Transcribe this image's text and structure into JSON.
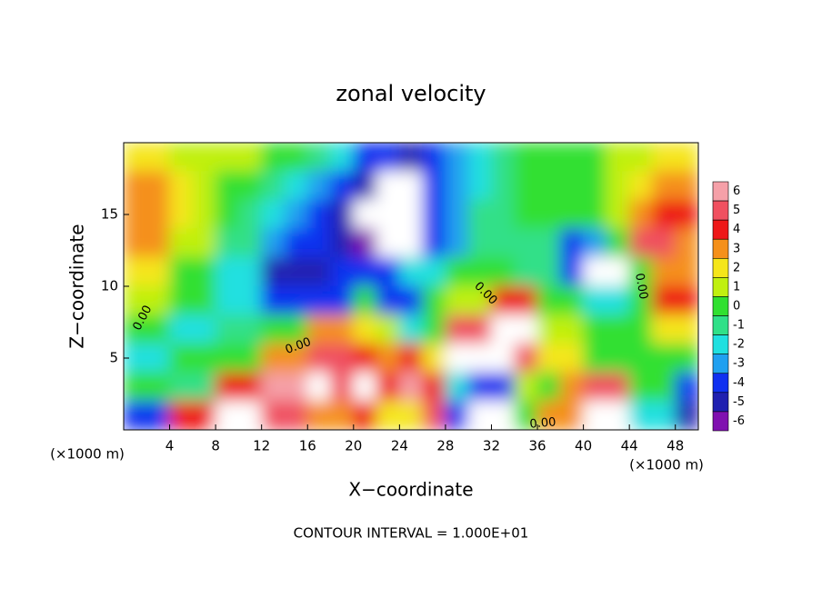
{
  "chart_data": {
    "type": "heatmap",
    "title": "zonal velocity",
    "x_label": "X−coordinate",
    "y_label": "Z−coordinate",
    "x_unit": "(×1000 m)",
    "y_unit": "(×1000 m)",
    "footer": "CONTOUR INTERVAL = 1.000E+01",
    "contour_labels": [
      "0.00",
      "0.00",
      "0.00",
      "0.00",
      "0.00"
    ],
    "xlim": [
      0,
      50
    ],
    "ylim": [
      0,
      20
    ],
    "xticks": [
      4,
      8,
      12,
      16,
      20,
      24,
      28,
      32,
      36,
      40,
      44,
      48
    ],
    "yticks": [
      5,
      10,
      15
    ],
    "x": [
      1,
      3,
      5,
      7,
      9,
      11,
      13,
      15,
      17,
      19,
      21,
      23,
      25,
      27,
      29,
      31,
      33,
      35,
      37,
      39,
      41,
      43,
      45,
      47,
      49
    ],
    "z": [
      19,
      17,
      15,
      13,
      11,
      9,
      7,
      5,
      3,
      1
    ],
    "values": [
      [
        2,
        2,
        1,
        1,
        1,
        0.5,
        0,
        0,
        -1,
        -2,
        -4,
        -4,
        -5,
        -4,
        -3,
        -2,
        -1,
        0,
        0,
        0,
        0,
        1,
        1,
        1.5,
        2
      ],
      [
        3,
        3,
        1.5,
        1,
        0,
        0,
        -1,
        -2,
        -3,
        -4,
        -5,
        -8,
        -8,
        -4,
        -3,
        -2,
        -1,
        0,
        0,
        0,
        0,
        1,
        2,
        3,
        3
      ],
      [
        3,
        3,
        1.5,
        1,
        0,
        -1,
        -2,
        -3,
        -4,
        -5,
        -8,
        -8,
        -8,
        -4,
        -3,
        -1,
        -1,
        0,
        0,
        0,
        0,
        1,
        3,
        4,
        4
      ],
      [
        3,
        3,
        1,
        1,
        -1,
        -1,
        -3,
        -4,
        -4,
        -5,
        -6,
        -8,
        -8,
        -4,
        -3,
        -1,
        -1,
        -1,
        -1,
        -4,
        -3,
        0,
        5,
        5,
        3
      ],
      [
        2,
        2,
        0,
        0,
        -2,
        -2,
        -5,
        -5,
        -5,
        -4,
        -4,
        -4,
        -2,
        -2,
        0,
        0,
        0,
        -1,
        -1,
        -4,
        -8,
        -8,
        0,
        3,
        3
      ],
      [
        0.5,
        0.5,
        -0.5,
        -0.5,
        -2,
        -2,
        -4,
        -4,
        -4,
        -4,
        0,
        -4,
        -4,
        0,
        1,
        1,
        4,
        4,
        0,
        0,
        -2,
        -2,
        0,
        4,
        4
      ],
      [
        0,
        0,
        -2,
        -2,
        -1,
        -1,
        0,
        0,
        3,
        3,
        2,
        1,
        -2,
        0,
        5,
        5,
        7,
        7,
        1,
        1,
        0,
        0,
        0,
        2,
        2
      ],
      [
        -2,
        -2,
        0,
        0,
        0,
        0,
        3,
        3,
        5,
        5,
        4,
        3,
        4,
        2,
        7,
        7,
        7,
        5,
        2,
        2,
        0,
        0,
        -0.5,
        -0.5,
        -0.5
      ],
      [
        0,
        0,
        -1,
        -1,
        4,
        4,
        6,
        6,
        7,
        5,
        7,
        4,
        6,
        4,
        -2,
        -4,
        -4,
        1,
        0,
        3,
        5,
        5,
        0,
        0,
        -4
      ],
      [
        -4,
        -4,
        4,
        4,
        7,
        7,
        5,
        5,
        3,
        3,
        4,
        2,
        2,
        5,
        -4,
        -8,
        -8,
        0,
        3,
        3,
        7,
        7,
        -2,
        -2,
        -5
      ]
    ],
    "colorbar": {
      "ticks": [
        6,
        5,
        4,
        3,
        2,
        1,
        0,
        -1,
        -2,
        -3,
        -4,
        -5,
        -6
      ],
      "colors": [
        "#f5a0a8",
        "#f05060",
        "#ee1818",
        "#f5901a",
        "#f5e61a",
        "#c0f010",
        "#30e030",
        "#30e088",
        "#20e0e0",
        "#20a0f0",
        "#1030f0",
        "#2020b0",
        "#8010b0"
      ],
      "beyond_color": "#ffffff"
    }
  }
}
